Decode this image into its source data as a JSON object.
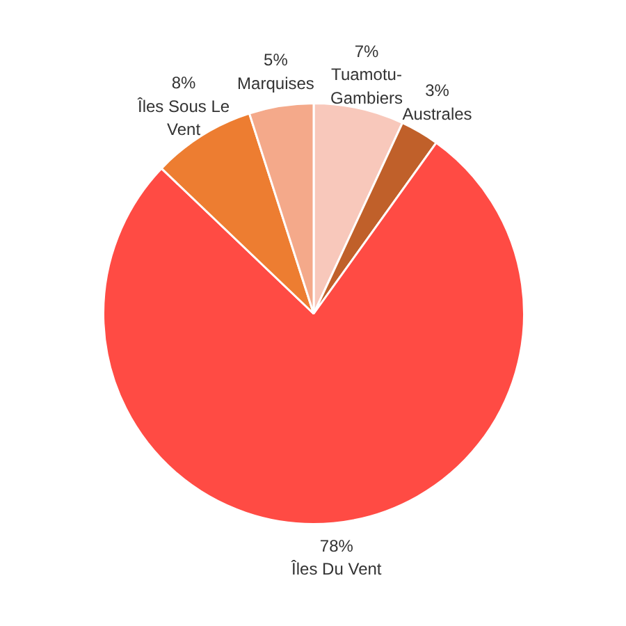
{
  "chart_data": {
    "type": "pie",
    "categories": [
      "Tuamotu-Gambiers",
      "Australes",
      "Îles Du Vent",
      "Îles Sous Le Vent",
      "Marquises"
    ],
    "values": [
      7,
      3,
      78,
      8,
      5
    ],
    "value_labels": [
      "7%",
      "3%",
      "78%",
      "8%",
      "5%"
    ],
    "colors": [
      "#f8c8bb",
      "#c0602a",
      "#ff4b44",
      "#ed7d31",
      "#f4a98a"
    ]
  }
}
